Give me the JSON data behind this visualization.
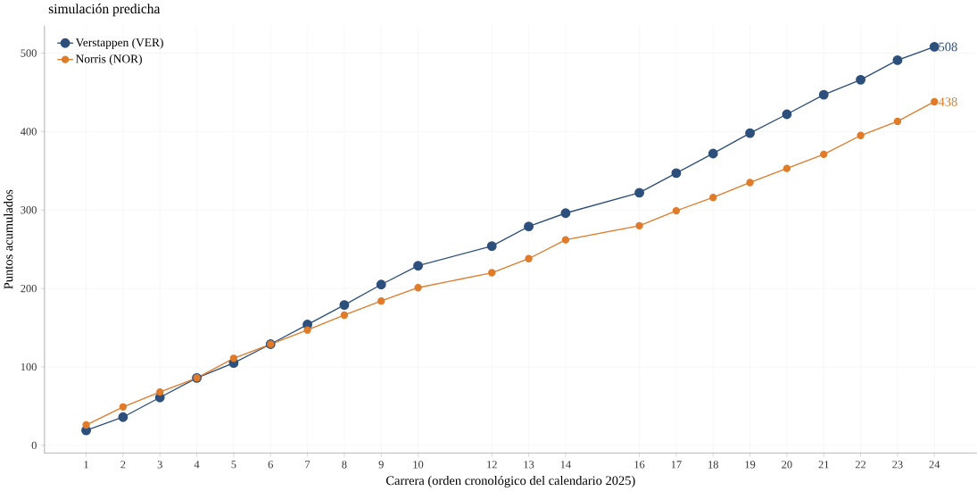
{
  "chart_data": {
    "type": "line",
    "title": "simulación predicha",
    "xlabel": "Carrera (orden cronológico del calendario 2025)",
    "ylabel": "Puntos acumulados",
    "x": [
      1,
      2,
      3,
      4,
      5,
      6,
      7,
      8,
      9,
      10,
      12,
      13,
      14,
      16,
      17,
      18,
      19,
      20,
      21,
      22,
      23,
      24
    ],
    "series": [
      {
        "name": "Verstappen (VER)",
        "color": "#2c4f7c",
        "values": [
          19,
          36,
          61,
          86,
          105,
          129,
          154,
          179,
          205,
          229,
          254,
          279,
          296,
          322,
          347,
          372,
          398,
          422,
          447,
          466,
          491,
          508
        ],
        "value_labels": [
          null,
          null,
          null,
          null,
          null,
          null,
          null,
          null,
          null,
          null,
          null,
          null,
          null,
          null,
          null,
          null,
          null,
          null,
          null,
          null,
          null,
          "508"
        ]
      },
      {
        "name": "Norris (NOR)",
        "color": "#e07b2a",
        "values": [
          26,
          49,
          68,
          86,
          111,
          129,
          147,
          166,
          184,
          201,
          220,
          238,
          262,
          280,
          299,
          316,
          335,
          353,
          371,
          395,
          413,
          438
        ],
        "value_labels": [
          null,
          null,
          null,
          null,
          null,
          null,
          null,
          null,
          null,
          null,
          null,
          null,
          null,
          null,
          null,
          null,
          null,
          null,
          null,
          null,
          null,
          "438"
        ]
      }
    ],
    "xlim": [
      -0.13,
      25.15
    ],
    "ylim": [
      -10,
      535
    ],
    "xticks": [
      1,
      2,
      3,
      4,
      5,
      6,
      7,
      8,
      9,
      10,
      12,
      13,
      14,
      16,
      17,
      18,
      19,
      20,
      21,
      22,
      23,
      24
    ],
    "yticks": [
      0,
      100,
      200,
      300,
      400,
      500
    ],
    "grid": true,
    "legend": "top left",
    "marker": "circle",
    "line_style": "solid"
  }
}
